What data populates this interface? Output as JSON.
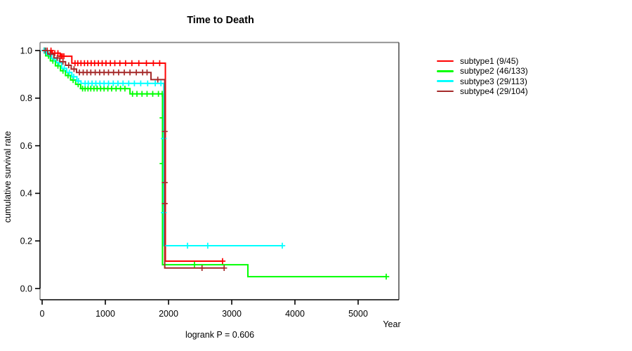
{
  "chart_data": {
    "type": "line",
    "chart_kind": "kaplan-meier-survival",
    "title": "Time to Death",
    "xlabel": "Year",
    "ylabel": "cumulative survival rate",
    "footnote": "logrank P = 0.606",
    "x_ticks": [
      0,
      1000,
      2000,
      3000,
      4000,
      5000
    ],
    "y_ticks": [
      {
        "label": "1.0",
        "value": 1.0
      },
      {
        "label": "0.8",
        "value": 0.8
      },
      {
        "label": "0.6",
        "value": 0.6
      },
      {
        "label": "0.4",
        "value": 0.4
      },
      {
        "label": "0.2",
        "value": 0.2
      },
      {
        "label": "0.0",
        "value": 0.0
      }
    ],
    "xlim": [
      0,
      5644
    ],
    "ylim": [
      0,
      1.0
    ],
    "grid": false,
    "legend_position": "right",
    "colors": {
      "frame": "#848484",
      "axis": "#000000",
      "text": "#000000",
      "background": "#ffffff"
    },
    "series": [
      {
        "name": "subtype1 (9/45)",
        "color": "#ff0000",
        "steps": [
          [
            0,
            1
          ],
          [
            160,
            1
          ],
          [
            160,
            0.989
          ],
          [
            285,
            0.989
          ],
          [
            285,
            0.976
          ],
          [
            470,
            0.976
          ],
          [
            470,
            0.947
          ],
          [
            1950,
            0.947
          ],
          [
            1950,
            0.115
          ],
          [
            2855,
            0.115
          ]
        ],
        "censors": [
          [
            30,
            1
          ],
          [
            80,
            1
          ],
          [
            140,
            1
          ],
          [
            200,
            0.989
          ],
          [
            250,
            0.989
          ],
          [
            300,
            0.976
          ],
          [
            320,
            0.976
          ],
          [
            345,
            0.976
          ],
          [
            520,
            0.947
          ],
          [
            565,
            0.947
          ],
          [
            615,
            0.947
          ],
          [
            670,
            0.947
          ],
          [
            720,
            0.947
          ],
          [
            775,
            0.947
          ],
          [
            830,
            0.947
          ],
          [
            890,
            0.947
          ],
          [
            950,
            0.947
          ],
          [
            1010,
            0.947
          ],
          [
            1080,
            0.947
          ],
          [
            1150,
            0.947
          ],
          [
            1230,
            0.947
          ],
          [
            1320,
            0.947
          ],
          [
            1420,
            0.947
          ],
          [
            1530,
            0.947
          ],
          [
            1650,
            0.947
          ],
          [
            1760,
            0.947
          ],
          [
            1860,
            0.947
          ],
          [
            2855,
            0.115
          ]
        ]
      },
      {
        "name": "subtype2 (46/133)",
        "color": "#00ff00",
        "steps": [
          [
            0,
            1
          ],
          [
            55,
            1
          ],
          [
            55,
            0.978
          ],
          [
            130,
            0.978
          ],
          [
            130,
            0.957
          ],
          [
            210,
            0.957
          ],
          [
            210,
            0.936
          ],
          [
            290,
            0.936
          ],
          [
            290,
            0.915
          ],
          [
            370,
            0.915
          ],
          [
            370,
            0.895
          ],
          [
            450,
            0.895
          ],
          [
            450,
            0.876
          ],
          [
            530,
            0.876
          ],
          [
            530,
            0.858
          ],
          [
            610,
            0.858
          ],
          [
            610,
            0.84
          ],
          [
            1390,
            0.84
          ],
          [
            1390,
            0.818
          ],
          [
            1905,
            0.818
          ],
          [
            1905,
            0.1
          ],
          [
            3256,
            0.1
          ],
          [
            3256,
            0.05
          ],
          [
            5445,
            0.05
          ]
        ],
        "censors": [
          [
            40,
            1
          ],
          [
            100,
            0.978
          ],
          [
            170,
            0.957
          ],
          [
            250,
            0.936
          ],
          [
            330,
            0.915
          ],
          [
            410,
            0.895
          ],
          [
            490,
            0.876
          ],
          [
            570,
            0.858
          ],
          [
            640,
            0.84
          ],
          [
            680,
            0.84
          ],
          [
            725,
            0.84
          ],
          [
            770,
            0.84
          ],
          [
            820,
            0.84
          ],
          [
            870,
            0.84
          ],
          [
            925,
            0.84
          ],
          [
            980,
            0.84
          ],
          [
            1040,
            0.84
          ],
          [
            1100,
            0.84
          ],
          [
            1170,
            0.84
          ],
          [
            1240,
            0.84
          ],
          [
            1310,
            0.84
          ],
          [
            1430,
            0.818
          ],
          [
            1500,
            0.818
          ],
          [
            1580,
            0.818
          ],
          [
            1660,
            0.818
          ],
          [
            1750,
            0.818
          ],
          [
            1840,
            0.818
          ],
          [
            1900,
            0.818
          ],
          [
            1905,
            0.717
          ],
          [
            1905,
            0.525
          ],
          [
            2410,
            0.1
          ],
          [
            5445,
            0.05
          ]
        ]
      },
      {
        "name": "subtype3 (29/113)",
        "color": "#00ffff",
        "steps": [
          [
            0,
            1
          ],
          [
            70,
            1
          ],
          [
            70,
            0.983
          ],
          [
            150,
            0.983
          ],
          [
            150,
            0.966
          ],
          [
            230,
            0.966
          ],
          [
            230,
            0.949
          ],
          [
            310,
            0.949
          ],
          [
            310,
            0.925
          ],
          [
            390,
            0.925
          ],
          [
            390,
            0.908
          ],
          [
            470,
            0.908
          ],
          [
            470,
            0.89
          ],
          [
            550,
            0.89
          ],
          [
            550,
            0.872
          ],
          [
            615,
            0.872
          ],
          [
            615,
            0.862
          ],
          [
            1925,
            0.862
          ],
          [
            1925,
            0.18
          ],
          [
            3800,
            0.18
          ]
        ],
        "censors": [
          [
            30,
            1
          ],
          [
            60,
            1
          ],
          [
            120,
            0.983
          ],
          [
            190,
            0.966
          ],
          [
            270,
            0.949
          ],
          [
            350,
            0.925
          ],
          [
            430,
            0.908
          ],
          [
            500,
            0.89
          ],
          [
            575,
            0.872
          ],
          [
            680,
            0.862
          ],
          [
            730,
            0.862
          ],
          [
            790,
            0.862
          ],
          [
            850,
            0.862
          ],
          [
            915,
            0.862
          ],
          [
            980,
            0.862
          ],
          [
            1050,
            0.862
          ],
          [
            1125,
            0.862
          ],
          [
            1200,
            0.862
          ],
          [
            1280,
            0.862
          ],
          [
            1370,
            0.862
          ],
          [
            1460,
            0.862
          ],
          [
            1560,
            0.862
          ],
          [
            1670,
            0.862
          ],
          [
            1790,
            0.862
          ],
          [
            1880,
            0.862
          ],
          [
            1925,
            0.63
          ],
          [
            1925,
            0.319
          ],
          [
            2300,
            0.18
          ],
          [
            2620,
            0.18
          ],
          [
            3800,
            0.18
          ]
        ]
      },
      {
        "name": "subtype4 (29/104)",
        "color": "#a52a2a",
        "steps": [
          [
            0,
            1
          ],
          [
            90,
            1
          ],
          [
            90,
            0.985
          ],
          [
            185,
            0.985
          ],
          [
            185,
            0.969
          ],
          [
            280,
            0.969
          ],
          [
            280,
            0.953
          ],
          [
            370,
            0.953
          ],
          [
            370,
            0.938
          ],
          [
            460,
            0.938
          ],
          [
            460,
            0.922
          ],
          [
            545,
            0.922
          ],
          [
            545,
            0.908
          ],
          [
            1722,
            0.908
          ],
          [
            1722,
            0.878
          ],
          [
            1940,
            0.878
          ],
          [
            1940,
            0.086
          ],
          [
            2885,
            0.086
          ]
        ],
        "censors": [
          [
            50,
            1
          ],
          [
            130,
            0.985
          ],
          [
            240,
            0.969
          ],
          [
            330,
            0.953
          ],
          [
            420,
            0.938
          ],
          [
            505,
            0.922
          ],
          [
            590,
            0.908
          ],
          [
            650,
            0.908
          ],
          [
            710,
            0.908
          ],
          [
            770,
            0.908
          ],
          [
            840,
            0.908
          ],
          [
            910,
            0.908
          ],
          [
            980,
            0.908
          ],
          [
            1050,
            0.908
          ],
          [
            1130,
            0.908
          ],
          [
            1210,
            0.908
          ],
          [
            1300,
            0.908
          ],
          [
            1390,
            0.908
          ],
          [
            1490,
            0.908
          ],
          [
            1590,
            0.908
          ],
          [
            1660,
            0.908
          ],
          [
            1830,
            0.878
          ],
          [
            1940,
            0.66
          ],
          [
            1940,
            0.445
          ],
          [
            1940,
            0.357
          ],
          [
            2530,
            0.086
          ],
          [
            2880,
            0.086
          ]
        ]
      }
    ]
  }
}
